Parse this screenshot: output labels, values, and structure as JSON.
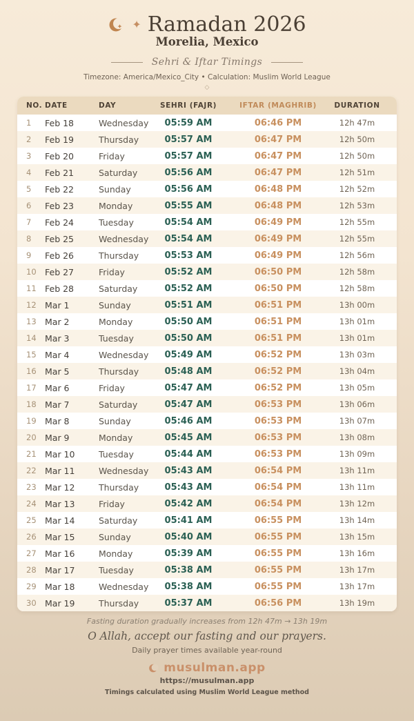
{
  "header": {
    "title": "Ramadan 2026",
    "location": "Morelia, Mexico",
    "subtitle": "Sehri & Iftar Timings",
    "meta": "Timezone: America/Mexico_City • Calculation: Muslim World League",
    "sparkle_glyph": "✦",
    "diamond_glyph": "◇"
  },
  "table": {
    "columns": [
      "NO.",
      "DATE",
      "DAY",
      "SEHRI (FAJR)",
      "IFTAR (MAGHRIB)",
      "DURATION"
    ],
    "rows": [
      {
        "no": "1",
        "date": "Feb 18",
        "day": "Wednesday",
        "sehri": "05:59 AM",
        "iftar": "06:46 PM",
        "duration": "12h 47m"
      },
      {
        "no": "2",
        "date": "Feb 19",
        "day": "Thursday",
        "sehri": "05:57 AM",
        "iftar": "06:47 PM",
        "duration": "12h 50m"
      },
      {
        "no": "3",
        "date": "Feb 20",
        "day": "Friday",
        "sehri": "05:57 AM",
        "iftar": "06:47 PM",
        "duration": "12h 50m"
      },
      {
        "no": "4",
        "date": "Feb 21",
        "day": "Saturday",
        "sehri": "05:56 AM",
        "iftar": "06:47 PM",
        "duration": "12h 51m"
      },
      {
        "no": "5",
        "date": "Feb 22",
        "day": "Sunday",
        "sehri": "05:56 AM",
        "iftar": "06:48 PM",
        "duration": "12h 52m"
      },
      {
        "no": "6",
        "date": "Feb 23",
        "day": "Monday",
        "sehri": "05:55 AM",
        "iftar": "06:48 PM",
        "duration": "12h 53m"
      },
      {
        "no": "7",
        "date": "Feb 24",
        "day": "Tuesday",
        "sehri": "05:54 AM",
        "iftar": "06:49 PM",
        "duration": "12h 55m"
      },
      {
        "no": "8",
        "date": "Feb 25",
        "day": "Wednesday",
        "sehri": "05:54 AM",
        "iftar": "06:49 PM",
        "duration": "12h 55m"
      },
      {
        "no": "9",
        "date": "Feb 26",
        "day": "Thursday",
        "sehri": "05:53 AM",
        "iftar": "06:49 PM",
        "duration": "12h 56m"
      },
      {
        "no": "10",
        "date": "Feb 27",
        "day": "Friday",
        "sehri": "05:52 AM",
        "iftar": "06:50 PM",
        "duration": "12h 58m"
      },
      {
        "no": "11",
        "date": "Feb 28",
        "day": "Saturday",
        "sehri": "05:52 AM",
        "iftar": "06:50 PM",
        "duration": "12h 58m"
      },
      {
        "no": "12",
        "date": "Mar 1",
        "day": "Sunday",
        "sehri": "05:51 AM",
        "iftar": "06:51 PM",
        "duration": "13h 00m"
      },
      {
        "no": "13",
        "date": "Mar 2",
        "day": "Monday",
        "sehri": "05:50 AM",
        "iftar": "06:51 PM",
        "duration": "13h 01m"
      },
      {
        "no": "14",
        "date": "Mar 3",
        "day": "Tuesday",
        "sehri": "05:50 AM",
        "iftar": "06:51 PM",
        "duration": "13h 01m"
      },
      {
        "no": "15",
        "date": "Mar 4",
        "day": "Wednesday",
        "sehri": "05:49 AM",
        "iftar": "06:52 PM",
        "duration": "13h 03m"
      },
      {
        "no": "16",
        "date": "Mar 5",
        "day": "Thursday",
        "sehri": "05:48 AM",
        "iftar": "06:52 PM",
        "duration": "13h 04m"
      },
      {
        "no": "17",
        "date": "Mar 6",
        "day": "Friday",
        "sehri": "05:47 AM",
        "iftar": "06:52 PM",
        "duration": "13h 05m"
      },
      {
        "no": "18",
        "date": "Mar 7",
        "day": "Saturday",
        "sehri": "05:47 AM",
        "iftar": "06:53 PM",
        "duration": "13h 06m"
      },
      {
        "no": "19",
        "date": "Mar 8",
        "day": "Sunday",
        "sehri": "05:46 AM",
        "iftar": "06:53 PM",
        "duration": "13h 07m"
      },
      {
        "no": "20",
        "date": "Mar 9",
        "day": "Monday",
        "sehri": "05:45 AM",
        "iftar": "06:53 PM",
        "duration": "13h 08m"
      },
      {
        "no": "21",
        "date": "Mar 10",
        "day": "Tuesday",
        "sehri": "05:44 AM",
        "iftar": "06:53 PM",
        "duration": "13h 09m"
      },
      {
        "no": "22",
        "date": "Mar 11",
        "day": "Wednesday",
        "sehri": "05:43 AM",
        "iftar": "06:54 PM",
        "duration": "13h 11m"
      },
      {
        "no": "23",
        "date": "Mar 12",
        "day": "Thursday",
        "sehri": "05:43 AM",
        "iftar": "06:54 PM",
        "duration": "13h 11m"
      },
      {
        "no": "24",
        "date": "Mar 13",
        "day": "Friday",
        "sehri": "05:42 AM",
        "iftar": "06:54 PM",
        "duration": "13h 12m"
      },
      {
        "no": "25",
        "date": "Mar 14",
        "day": "Saturday",
        "sehri": "05:41 AM",
        "iftar": "06:55 PM",
        "duration": "13h 14m"
      },
      {
        "no": "26",
        "date": "Mar 15",
        "day": "Sunday",
        "sehri": "05:40 AM",
        "iftar": "06:55 PM",
        "duration": "13h 15m"
      },
      {
        "no": "27",
        "date": "Mar 16",
        "day": "Monday",
        "sehri": "05:39 AM",
        "iftar": "06:55 PM",
        "duration": "13h 16m"
      },
      {
        "no": "28",
        "date": "Mar 17",
        "day": "Tuesday",
        "sehri": "05:38 AM",
        "iftar": "06:55 PM",
        "duration": "13h 17m"
      },
      {
        "no": "29",
        "date": "Mar 18",
        "day": "Wednesday",
        "sehri": "05:38 AM",
        "iftar": "06:55 PM",
        "duration": "13h 17m"
      },
      {
        "no": "30",
        "date": "Mar 19",
        "day": "Thursday",
        "sehri": "05:37 AM",
        "iftar": "06:56 PM",
        "duration": "13h 19m"
      }
    ]
  },
  "footer": {
    "note": "Fasting duration gradually increases from 12h 47m → 13h 19m",
    "dua": "O Allah, accept our fasting and our prayers.",
    "availability": "Daily prayer times available year-round",
    "brand": "musulman.app",
    "url": "https://musulman.app",
    "method": "Timings calculated using Muslim World League method"
  },
  "colors": {
    "accent": "#c0854f",
    "sehri_time": "#2b6054",
    "iftar_time": "#c8905f",
    "title_ink": "#4a3f34"
  }
}
